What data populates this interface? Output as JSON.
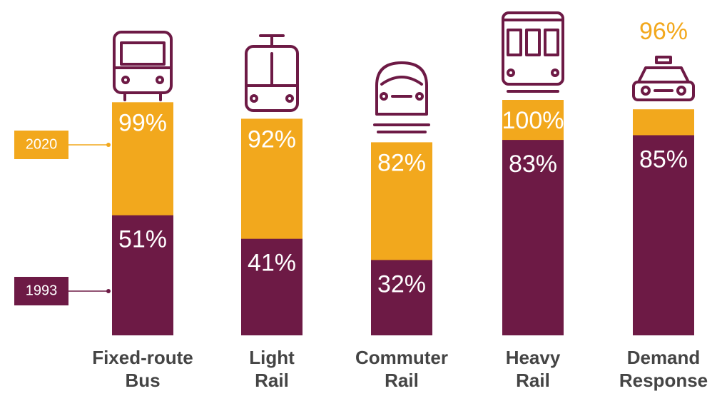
{
  "chart_data": {
    "type": "bar",
    "categories": [
      [
        "Fixed-route",
        "Bus"
      ],
      [
        "Light",
        "Rail"
      ],
      [
        "Commuter",
        "Rail"
      ],
      [
        "Heavy",
        "Rail"
      ],
      [
        "Demand",
        "Response"
      ]
    ],
    "series": [
      {
        "name": "2020",
        "color": "#f2a81d",
        "values": [
          99,
          92,
          82,
          100,
          96
        ],
        "value_labels": [
          "99%",
          "92%",
          "82%",
          "100%",
          "96%"
        ]
      },
      {
        "name": "1993",
        "color": "#6d1a45",
        "values": [
          51,
          41,
          32,
          83,
          85
        ],
        "value_labels": [
          "51%",
          "41%",
          "32%",
          "83%",
          "85%"
        ]
      }
    ],
    "ylim": [
      0,
      100
    ]
  }
}
